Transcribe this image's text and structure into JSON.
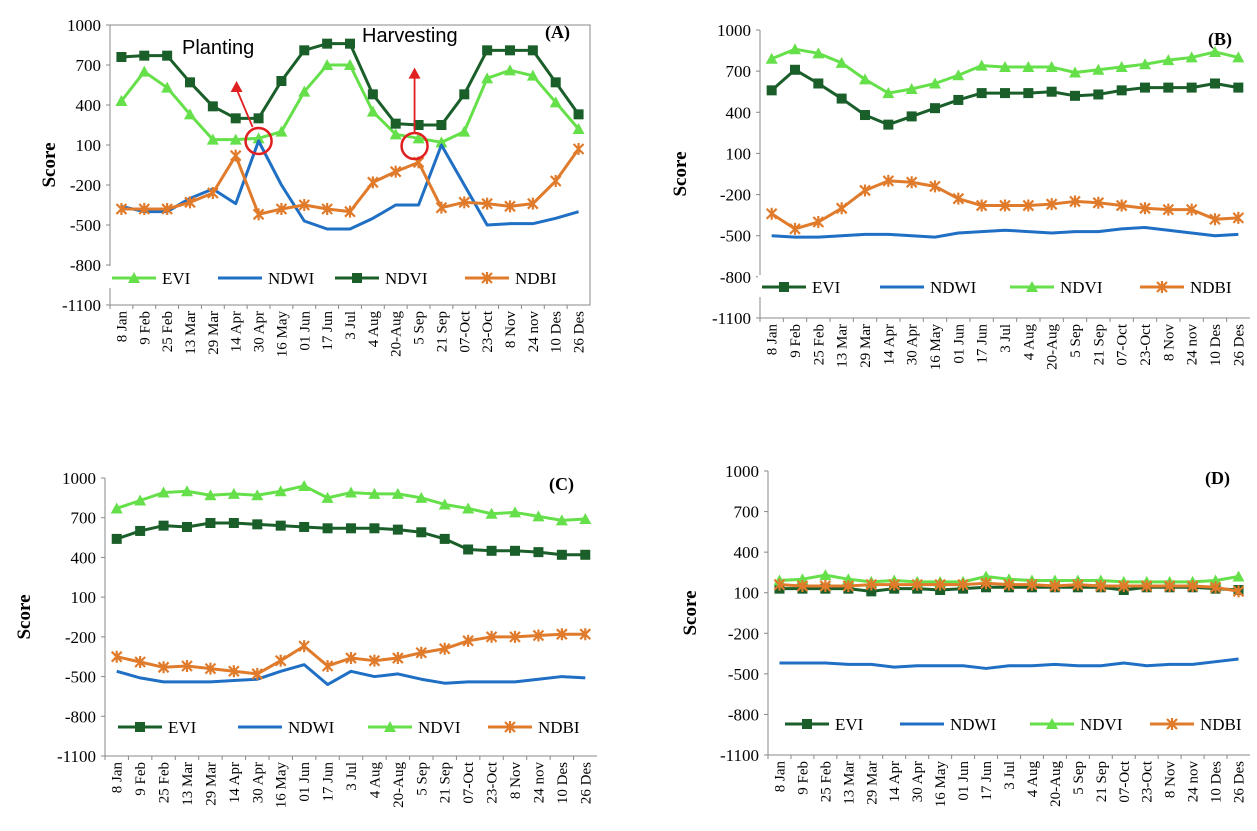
{
  "colors": {
    "EVI_A": "#66e04a",
    "NDWI": "#1f6fc4",
    "NDVI_A": "#1a5e2a",
    "NDBI": "#e07b2c",
    "annotation": "#e02020"
  },
  "chart_data": [
    {
      "panel": "(A)",
      "type": "line",
      "ylabel": "Score",
      "ylim": [
        -1100,
        1000
      ],
      "yticks": [
        "1000",
        "700",
        "400",
        "100",
        "-200",
        "-500",
        "-800",
        "-1100"
      ],
      "categories": [
        "8 Jan",
        "9 Feb",
        "25 Feb",
        "13 Mar",
        "29 Mar",
        "14 Apr",
        "30 Apr",
        "16 May",
        "01 Jun",
        "17 Jun",
        "3 Jul",
        "4 Aug",
        "20-Aug",
        "5 Sep",
        "21 Sep",
        "07-Oct",
        "23-Oct",
        "8 Nov",
        "24 nov",
        "10 Des",
        "26 Des"
      ],
      "series": [
        {
          "name": "EVI",
          "color": "#66e04a",
          "marker": "triangle",
          "values": [
            430,
            650,
            530,
            330,
            140,
            140,
            150,
            200,
            500,
            700,
            700,
            350,
            180,
            150,
            120,
            200,
            600,
            660,
            620,
            420,
            220
          ]
        },
        {
          "name": "NDWI",
          "color": "#1f6fc4",
          "marker": "none",
          "values": [
            -360,
            -400,
            -400,
            -300,
            -230,
            -340,
            130,
            -200,
            -470,
            -530,
            -530,
            -450,
            -350,
            -350,
            100,
            -200,
            -500,
            -490,
            -490,
            -450,
            -400
          ]
        },
        {
          "name": "NDVI",
          "color": "#1a5e2a",
          "marker": "square",
          "values": [
            760,
            770,
            770,
            570,
            390,
            300,
            300,
            580,
            810,
            860,
            860,
            480,
            260,
            250,
            250,
            480,
            810,
            810,
            810,
            570,
            330
          ]
        },
        {
          "name": "NDBI",
          "color": "#e07b2c",
          "marker": "star",
          "values": [
            -380,
            -380,
            -380,
            -330,
            -260,
            20,
            -420,
            -380,
            -350,
            -380,
            -400,
            -180,
            -100,
            -30,
            -370,
            -330,
            -340,
            -360,
            -340,
            -170,
            70
          ]
        }
      ],
      "legend": {
        "position": "bottom",
        "labels": [
          "EVI",
          "NDWI",
          "NDVI",
          "NDBI"
        ]
      },
      "annotations": [
        "Planting",
        "Harvesting"
      ]
    },
    {
      "panel": "(B)",
      "type": "line",
      "ylabel": "Score",
      "ylim": [
        -1100,
        1000
      ],
      "yticks": [
        "1000",
        "700",
        "400",
        "100",
        "-200",
        "-500",
        "-800",
        "-1100"
      ],
      "categories": [
        "8 Jan",
        "9 Feb",
        "25 Feb",
        "13 Mar",
        "29 Mar",
        "14 Apr",
        "30 Apr",
        "16 May",
        "01 Jun",
        "17 Jun",
        "3 Jul",
        "4 Aug",
        "20-Aug",
        "5 Sep",
        "21 Sep",
        "07-Oct",
        "23-Oct",
        "8 Nov",
        "24 nov",
        "10 Des",
        "26 Des"
      ],
      "series": [
        {
          "name": "EVI",
          "color": "#1a5e2a",
          "marker": "square",
          "values": [
            560,
            710,
            610,
            500,
            380,
            310,
            370,
            430,
            490,
            540,
            540,
            540,
            550,
            520,
            530,
            560,
            580,
            580,
            580,
            610,
            580
          ]
        },
        {
          "name": "NDWI",
          "color": "#1f6fc4",
          "marker": "none",
          "values": [
            -500,
            -510,
            -510,
            -500,
            -490,
            -490,
            -500,
            -510,
            -480,
            -470,
            -460,
            -470,
            -480,
            -470,
            -470,
            -450,
            -440,
            -460,
            -480,
            -500,
            -490
          ]
        },
        {
          "name": "NDVI",
          "color": "#66e04a",
          "marker": "triangle",
          "values": [
            790,
            860,
            830,
            760,
            640,
            540,
            570,
            610,
            670,
            740,
            730,
            730,
            730,
            690,
            710,
            730,
            750,
            780,
            800,
            840,
            800
          ]
        },
        {
          "name": "NDBI",
          "color": "#e07b2c",
          "marker": "star",
          "values": [
            -340,
            -450,
            -400,
            -300,
            -170,
            -100,
            -110,
            -140,
            -230,
            -280,
            -280,
            -280,
            -270,
            -250,
            -260,
            -280,
            -300,
            -310,
            -310,
            -380,
            -370
          ]
        }
      ],
      "legend": {
        "position": "bottom",
        "labels": [
          "EVI",
          "NDWI",
          "NDVI",
          "NDBI"
        ]
      }
    },
    {
      "panel": "(C)",
      "type": "line",
      "ylabel": "Score",
      "ylim": [
        -1100,
        1000
      ],
      "yticks": [
        "1000",
        "700",
        "400",
        "100",
        "-200",
        "-500",
        "-800",
        "-1100"
      ],
      "categories": [
        "8 Jan",
        "9 Feb",
        "25 Feb",
        "13 Mar",
        "29 Mar",
        "14 Apr",
        "30 Apr",
        "16 May",
        "01 Jun",
        "17 Jun",
        "3 Jul",
        "4 Aug",
        "20-Aug",
        "5 Sep",
        "21 Sep",
        "07-Oct",
        "23-Oct",
        "8 Nov",
        "24 nov",
        "10 Des",
        "26 Des"
      ],
      "series": [
        {
          "name": "EVI",
          "color": "#1a5e2a",
          "marker": "square",
          "values": [
            540,
            600,
            640,
            630,
            660,
            660,
            650,
            640,
            630,
            620,
            620,
            620,
            610,
            590,
            540,
            460,
            450,
            450,
            440,
            420,
            420
          ]
        },
        {
          "name": "NDWI",
          "color": "#1f6fc4",
          "marker": "none",
          "values": [
            -460,
            -510,
            -540,
            -540,
            -540,
            -530,
            -520,
            -460,
            -410,
            -560,
            -460,
            -500,
            -480,
            -520,
            -550,
            -540,
            -540,
            -540,
            -520,
            -500,
            -510
          ]
        },
        {
          "name": "NDVI",
          "color": "#66e04a",
          "marker": "triangle",
          "values": [
            770,
            830,
            890,
            900,
            870,
            880,
            870,
            900,
            940,
            850,
            890,
            880,
            880,
            850,
            800,
            770,
            730,
            740,
            710,
            680,
            690
          ]
        },
        {
          "name": "NDBI",
          "color": "#e07b2c",
          "marker": "star",
          "values": [
            -350,
            -390,
            -430,
            -420,
            -440,
            -460,
            -480,
            -380,
            -270,
            -420,
            -360,
            -380,
            -360,
            -320,
            -290,
            -230,
            -200,
            -200,
            -190,
            -180,
            -180
          ]
        }
      ],
      "legend": {
        "position": "bottom",
        "labels": [
          "EVI",
          "NDWI",
          "NDVI",
          "NDBI"
        ]
      }
    },
    {
      "panel": "(D)",
      "type": "line",
      "ylabel": "Score",
      "ylim": [
        -1100,
        1000
      ],
      "yticks": [
        "1000",
        "700",
        "400",
        "100",
        "-200",
        "-500",
        "-800",
        "-1100"
      ],
      "categories": [
        "8 Jan",
        "9 Feb",
        "25 Feb",
        "13 Mar",
        "29 Mar",
        "14 Apr",
        "30 Apr",
        "16 May",
        "01 Jun",
        "17 Jun",
        "3 Jul",
        "4 Aug",
        "20-Aug",
        "5 Sep",
        "21 Sep",
        "07-Oct",
        "23-Oct",
        "8 Nov",
        "24 nov",
        "10 Des",
        "26 Des"
      ],
      "series": [
        {
          "name": "EVI",
          "color": "#1a5e2a",
          "marker": "square",
          "values": [
            130,
            130,
            130,
            130,
            110,
            130,
            130,
            120,
            130,
            140,
            140,
            140,
            140,
            140,
            140,
            120,
            140,
            140,
            140,
            130,
            120
          ]
        },
        {
          "name": "NDWI",
          "color": "#1f6fc4",
          "marker": "none",
          "values": [
            -420,
            -420,
            -420,
            -430,
            -430,
            -450,
            -440,
            -440,
            -440,
            -460,
            -440,
            -440,
            -430,
            -440,
            -440,
            -420,
            -440,
            -430,
            -430,
            -410,
            -390
          ]
        },
        {
          "name": "NDVI",
          "color": "#66e04a",
          "marker": "triangle",
          "values": [
            190,
            200,
            230,
            200,
            180,
            190,
            180,
            180,
            180,
            220,
            200,
            190,
            190,
            190,
            190,
            180,
            180,
            180,
            180,
            190,
            220
          ]
        },
        {
          "name": "NDBI",
          "color": "#e07b2c",
          "marker": "star",
          "values": [
            160,
            150,
            150,
            150,
            160,
            160,
            160,
            160,
            160,
            170,
            160,
            160,
            150,
            160,
            150,
            150,
            150,
            150,
            150,
            140,
            110
          ]
        }
      ],
      "legend": {
        "position": "bottom",
        "labels": [
          "EVI",
          "NDWI",
          "NDVI",
          "NDBI"
        ]
      }
    }
  ]
}
